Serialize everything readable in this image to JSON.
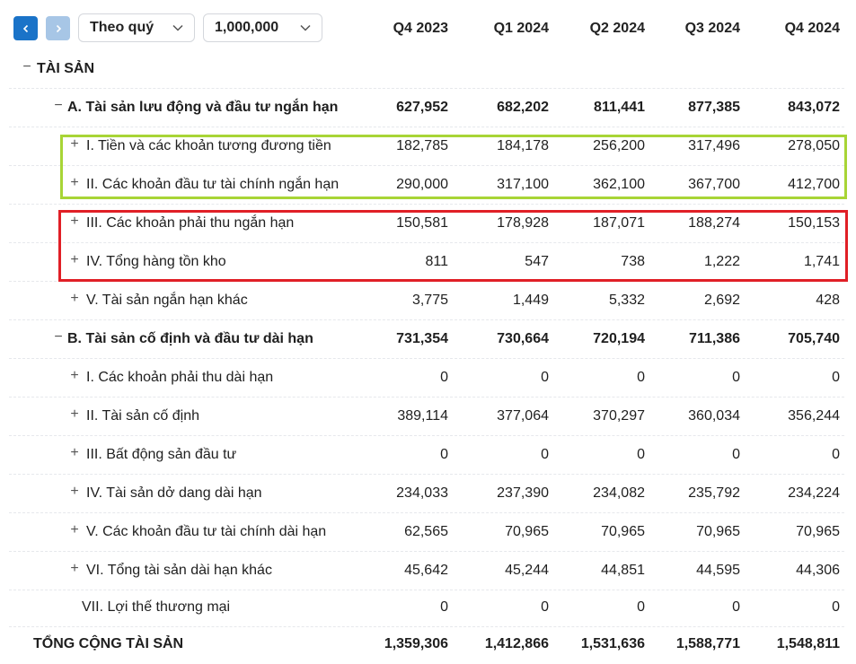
{
  "toolbar": {
    "period_select": "Theo quý",
    "unit_select": "1,000,000"
  },
  "columns": [
    "Q4 2023",
    "Q1 2024",
    "Q2 2024",
    "Q3 2024",
    "Q4 2024"
  ],
  "rows": [
    {
      "toggle": "−",
      "label": "TÀI SẢN",
      "values": [
        "",
        "",
        "",
        "",
        ""
      ]
    },
    {
      "toggle": "−",
      "label": "A. Tài sản lưu động và đầu tư ngắn hạn",
      "values": [
        "627,952",
        "682,202",
        "811,441",
        "877,385",
        "843,072"
      ]
    },
    {
      "toggle": "+",
      "label": "I. Tiền và các khoản tương đương tiền",
      "values": [
        "182,785",
        "184,178",
        "256,200",
        "317,496",
        "278,050"
      ]
    },
    {
      "toggle": "+",
      "label": "II. Các khoản đầu tư tài chính ngắn hạn",
      "values": [
        "290,000",
        "317,100",
        "362,100",
        "367,700",
        "412,700"
      ]
    },
    {
      "toggle": "+",
      "label": "III. Các khoản phải thu ngắn hạn",
      "values": [
        "150,581",
        "178,928",
        "187,071",
        "188,274",
        "150,153"
      ]
    },
    {
      "toggle": "+",
      "label": "IV. Tổng hàng tồn kho",
      "values": [
        "811",
        "547",
        "738",
        "1,222",
        "1,741"
      ]
    },
    {
      "toggle": "+",
      "label": "V. Tài sản ngắn hạn khác",
      "values": [
        "3,775",
        "1,449",
        "5,332",
        "2,692",
        "428"
      ]
    },
    {
      "toggle": "−",
      "label": "B. Tài sản cố định và đầu tư dài hạn",
      "values": [
        "731,354",
        "730,664",
        "720,194",
        "711,386",
        "705,740"
      ]
    },
    {
      "toggle": "+",
      "label": "I. Các khoản phải thu dài hạn",
      "values": [
        "0",
        "0",
        "0",
        "0",
        "0"
      ]
    },
    {
      "toggle": "+",
      "label": "II. Tài sản cố định",
      "values": [
        "389,114",
        "377,064",
        "370,297",
        "360,034",
        "356,244"
      ]
    },
    {
      "toggle": "+",
      "label": "III. Bất động sản đầu tư",
      "values": [
        "0",
        "0",
        "0",
        "0",
        "0"
      ]
    },
    {
      "toggle": "+",
      "label": "IV. Tài sản dở dang dài hạn",
      "values": [
        "234,033",
        "237,390",
        "234,082",
        "235,792",
        "234,224"
      ]
    },
    {
      "toggle": "+",
      "label": "V. Các khoản đầu tư tài chính dài hạn",
      "values": [
        "62,565",
        "70,965",
        "70,965",
        "70,965",
        "70,965"
      ]
    },
    {
      "toggle": "+",
      "label": "VI. Tổng tài sản dài hạn khác",
      "values": [
        "45,642",
        "45,244",
        "44,851",
        "44,595",
        "44,306"
      ]
    },
    {
      "toggle": "",
      "label": "VII. Lợi thế thương mại",
      "values": [
        "0",
        "0",
        "0",
        "0",
        "0"
      ]
    },
    {
      "toggle": "",
      "label": "TỔNG CỘNG TÀI SẢN",
      "values": [
        "1,359,306",
        "1,412,866",
        "1,531,636",
        "1,588,771",
        "1,548,811"
      ]
    }
  ],
  "colors": {
    "nav_prev": "#1a73c8",
    "nav_next": "#a7c6e6",
    "highlight_green": "#a8d536",
    "highlight_red": "#e01f26"
  },
  "icons": [
    "chevron-left-icon",
    "chevron-right-icon",
    "chevron-down-icon",
    "collapse-icon",
    "expand-icon"
  ]
}
